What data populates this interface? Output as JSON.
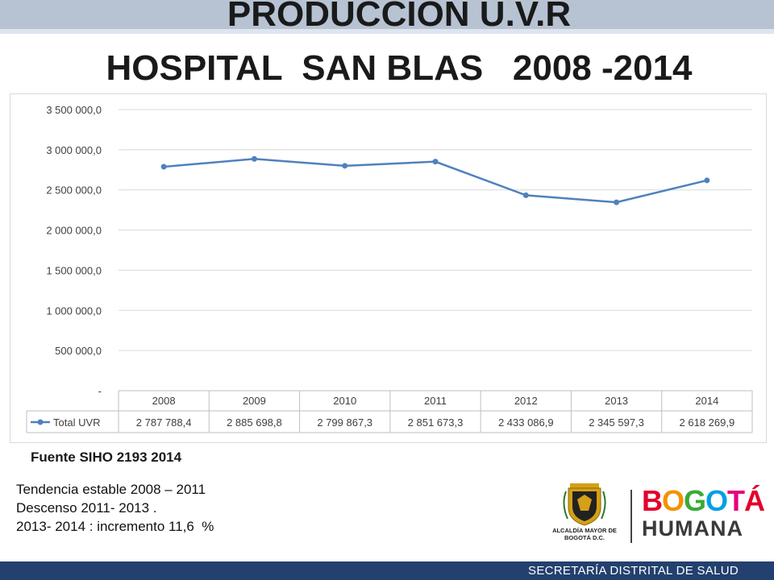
{
  "header": {
    "title_line1": "PRODUCCION U.V.R",
    "title_line2": "HOSPITAL  SAN BLAS   2008 -2014"
  },
  "chart_data": {
    "type": "line",
    "categories": [
      "2008",
      "2009",
      "2010",
      "2011",
      "2012",
      "2013",
      "2014"
    ],
    "series": [
      {
        "name": "Total UVR",
        "values": [
          2787788.4,
          2885698.8,
          2799867.3,
          2851673.3,
          2433086.9,
          2345597.3,
          2618269.9
        ],
        "labels": [
          "2 787 788,4",
          "2 885 698,8",
          "2 799 867,3",
          "2 851 673,3",
          "2 433 086,9",
          "2 345 597,3",
          "2 618 269,9"
        ],
        "color": "#4f81bd"
      }
    ],
    "ylim": [
      0,
      3500000
    ],
    "yticks": [
      0,
      500000,
      1000000,
      1500000,
      2000000,
      2500000,
      3000000,
      3500000
    ],
    "ytick_labels": [
      "-",
      "500 000,0",
      "1 000 000,0",
      "1 500 000,0",
      "2 000 000,0",
      "2 500 000,0",
      "3 000 000,0",
      "3 500 000,0"
    ],
    "grid": true,
    "legend": "data table below chart",
    "title": "",
    "xlabel": "",
    "ylabel": ""
  },
  "source": "Fuente SIHO 2193 2014",
  "notes": [
    "Tendencia estable 2008 – 2011",
    "Descenso 2011- 2013 .",
    "2013- 2014 : incremento 11,6  %"
  ],
  "logos": {
    "alcaldia": "ALCALDÍA MAYOR DE BOGOTÁ D.C.",
    "bogota": "BOGOTÁ",
    "humana": "HUMANA",
    "colors": {
      "b": "#e4002b",
      "o": "#f39200",
      "g": "#3aaa35",
      "o2": "#00a0e3",
      "t": "#e6007e",
      "a": "#e4002b",
      "humana": "#3a3a3a",
      "shield": "#d4a017"
    }
  },
  "footer": {
    "text": "SECRETARÍA DISTRITAL DE SALUD",
    "color": "#23406e"
  }
}
